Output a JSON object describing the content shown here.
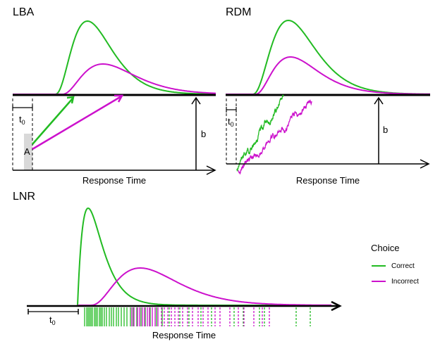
{
  "panels": {
    "lba": {
      "title": "LBA",
      "t0_label": "t",
      "t0_sub": "0",
      "a_label": "A",
      "b_label": "b",
      "xlabel": "Response Time"
    },
    "rdm": {
      "title": "RDM",
      "t0_label": "t",
      "t0_sub": "0",
      "b_label": "b",
      "xlabel": "Response Time"
    },
    "lnr": {
      "title": "LNR",
      "t0_label": "t",
      "t0_sub": "0",
      "xlabel": "Response Time"
    }
  },
  "legend": {
    "title": "Choice",
    "items": [
      {
        "label": "Correct",
        "color": "#22bb22"
      },
      {
        "label": "Incorrect",
        "color": "#cc11cc"
      }
    ]
  },
  "colors": {
    "correct": "#22bb22",
    "incorrect": "#cc11cc",
    "axis": "#000000",
    "shade": "#d9d9d9"
  }
}
